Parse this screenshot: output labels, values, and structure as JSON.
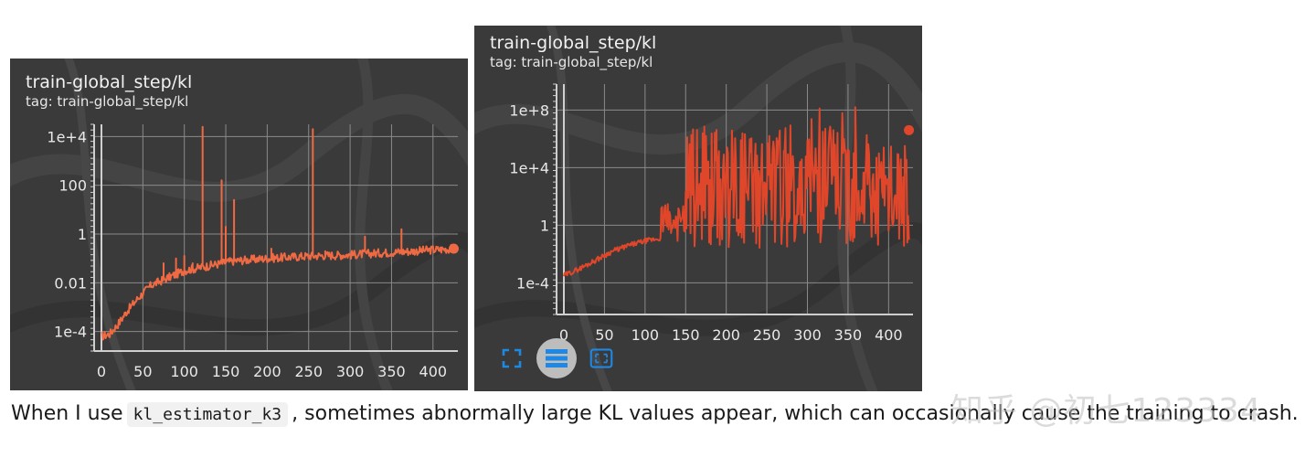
{
  "colors": {
    "panel_bg": "#3a3a3a",
    "grid": "#8a8a8a",
    "axis": "#cfcfcf",
    "line_left": "#ef6a43",
    "line_right": "#e0462a",
    "tool_blue": "#1e88e5"
  },
  "caption": {
    "before": "When I use",
    "code": "kl_estimator_k3",
    "after": ", sometimes abnormally large KL values appear, which can occasionally cause the training to crash."
  },
  "watermark": "知乎 @初七123334",
  "toolbar": {
    "icons": [
      "fullscreen-icon",
      "log-scale-toggle-icon",
      "fit-domain-icon"
    ]
  },
  "chart_data": [
    {
      "type": "line",
      "title": "train-global_step/kl",
      "tag": "tag: train-global_step/kl",
      "yscale": "log",
      "xlim": [
        0,
        430
      ],
      "ylim_log10": [
        -4.8,
        4.5
      ],
      "x_ticks": [
        0,
        50,
        100,
        150,
        200,
        250,
        300,
        350,
        400
      ],
      "y_ticks": [
        {
          "label": "1e-4",
          "log10": -4
        },
        {
          "label": "0.01",
          "log10": -2
        },
        {
          "label": "1",
          "log10": 0
        },
        {
          "label": "100",
          "log10": 2
        },
        {
          "label": "1e+4",
          "log10": 4
        }
      ],
      "series": [
        {
          "name": "kl",
          "baseline_log10": [
            [
              0,
              -4.2
            ],
            [
              10,
              -4.1
            ],
            [
              20,
              -3.7
            ],
            [
              30,
              -3.2
            ],
            [
              45,
              -2.6
            ],
            [
              60,
              -2.1
            ],
            [
              80,
              -1.8
            ],
            [
              100,
              -1.5
            ],
            [
              130,
              -1.3
            ],
            [
              160,
              -1.1
            ],
            [
              200,
              -1.0
            ],
            [
              250,
              -0.9
            ],
            [
              300,
              -0.85
            ],
            [
              350,
              -0.75
            ],
            [
              400,
              -0.65
            ],
            [
              425,
              -0.6
            ]
          ],
          "spikes": [
            [
              75,
              -1.2
            ],
            [
              90,
              -1.0
            ],
            [
              100,
              -0.9
            ],
            [
              110,
              -1.2
            ],
            [
              122,
              4.4
            ],
            [
              145,
              2.2
            ],
            [
              150,
              0.3
            ],
            [
              160,
              1.4
            ],
            [
              205,
              -0.6
            ],
            [
              255,
              4.3
            ],
            [
              270,
              -0.7
            ],
            [
              318,
              -0.1
            ],
            [
              362,
              0.2
            ],
            [
              400,
              -0.5
            ]
          ]
        }
      ],
      "end_point": {
        "x": 425,
        "log10": -0.6
      }
    },
    {
      "type": "line",
      "title": "train-global_step/kl",
      "tag": "tag: train-global_step/kl",
      "yscale": "log",
      "xlim": [
        0,
        430
      ],
      "ylim_log10": [
        -6.2,
        9.8
      ],
      "x_ticks": [
        0,
        50,
        100,
        150,
        200,
        250,
        300,
        350,
        400
      ],
      "y_ticks": [
        {
          "label": "1e-4",
          "log10": -4
        },
        {
          "label": "1",
          "log10": 0
        },
        {
          "label": "1e+4",
          "log10": 4
        },
        {
          "label": "1e+8",
          "log10": 8
        }
      ],
      "series": [
        {
          "name": "kl",
          "baseline_log10": [
            [
              0,
              -3.5
            ],
            [
              20,
              -3.0
            ],
            [
              40,
              -2.4
            ],
            [
              60,
              -1.8
            ],
            [
              80,
              -1.4
            ],
            [
              100,
              -1.1
            ],
            [
              120,
              -0.9
            ],
            [
              140,
              -0.6
            ],
            [
              160,
              -0.4
            ],
            [
              190,
              -1.2
            ],
            [
              220,
              -1.4
            ],
            [
              250,
              -1.3
            ],
            [
              280,
              -1.2
            ],
            [
              300,
              -1.2
            ],
            [
              330,
              -1.0
            ],
            [
              360,
              -1.0
            ],
            [
              390,
              -1.2
            ],
            [
              410,
              -1.2
            ],
            [
              425,
              -1.0
            ]
          ],
          "noise_band": [
            {
              "from": 120,
              "to": 150,
              "low": -1.1,
              "high": 1.5
            },
            {
              "from": 150,
              "to": 280,
              "low": -1.6,
              "high": 7.2
            },
            {
              "from": 280,
              "to": 300,
              "low": -1.2,
              "high": 5.0
            },
            {
              "from": 300,
              "to": 380,
              "low": -1.3,
              "high": 8.2
            },
            {
              "from": 380,
              "to": 425,
              "low": -1.6,
              "high": 6.0
            }
          ]
        }
      ],
      "end_point": {
        "x": 425,
        "log10": 6.6
      }
    }
  ]
}
